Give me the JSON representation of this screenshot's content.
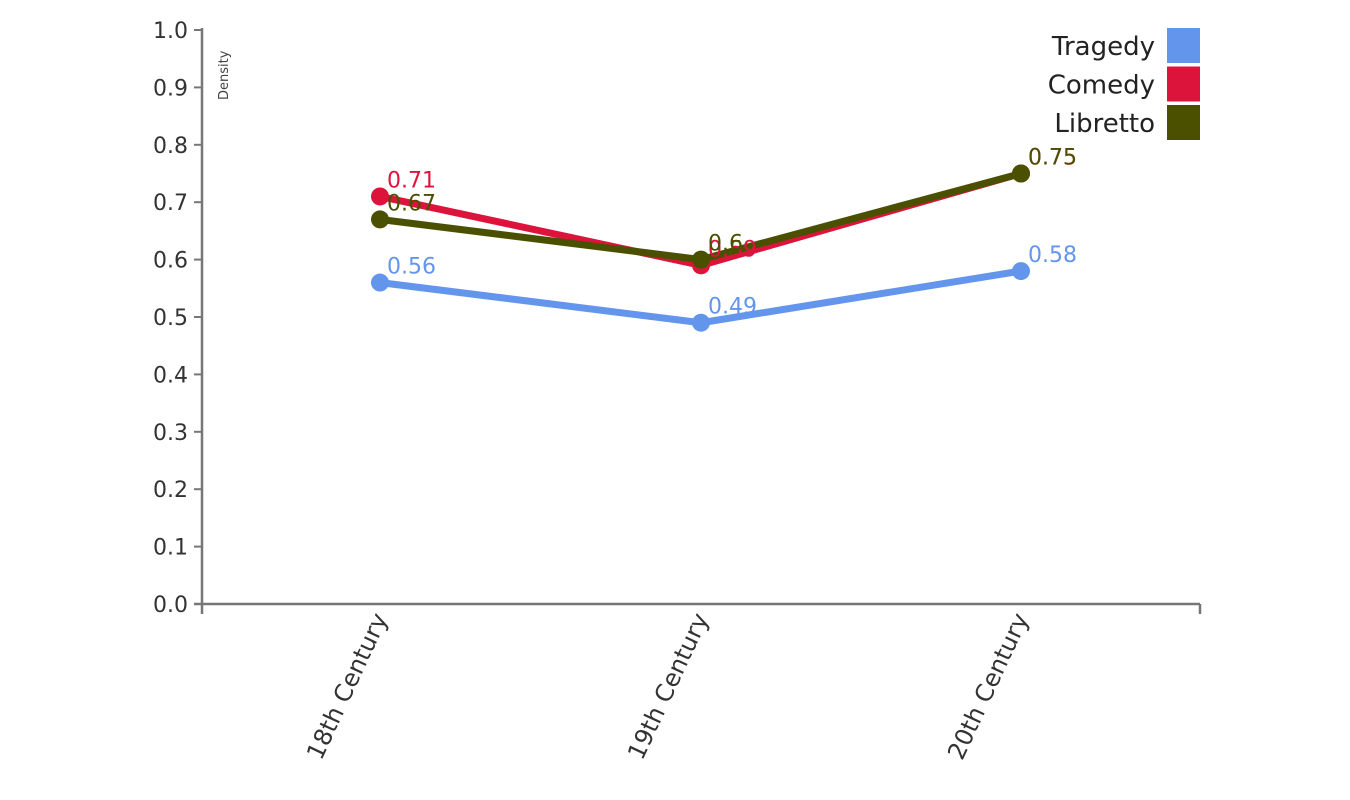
{
  "chart_data": {
    "type": "line",
    "categories": [
      "18th Century",
      "19th Century",
      "20th Century"
    ],
    "ylabel": "Density",
    "ylim": [
      0,
      1
    ],
    "yticks": [
      "0.0",
      "0.1",
      "0.2",
      "0.3",
      "0.4",
      "0.5",
      "0.6",
      "0.7",
      "0.8",
      "0.9",
      "1.0"
    ],
    "legend_position": "top-right",
    "series": [
      {
        "name": "Tragedy",
        "color": "#6495ED",
        "values": [
          0.56,
          0.49,
          0.58
        ],
        "labels": [
          "0.56",
          "0.49",
          "0.58"
        ]
      },
      {
        "name": "Comedy",
        "color": "#DC143C",
        "values": [
          0.71,
          0.59,
          0.75
        ],
        "labels": [
          "0.71",
          "0.59",
          "0.75"
        ]
      },
      {
        "name": "Libretto",
        "color": "#4B5000",
        "values": [
          0.67,
          0.6,
          0.75
        ],
        "labels": [
          "0.67",
          "0.6",
          "0.75"
        ]
      }
    ]
  }
}
